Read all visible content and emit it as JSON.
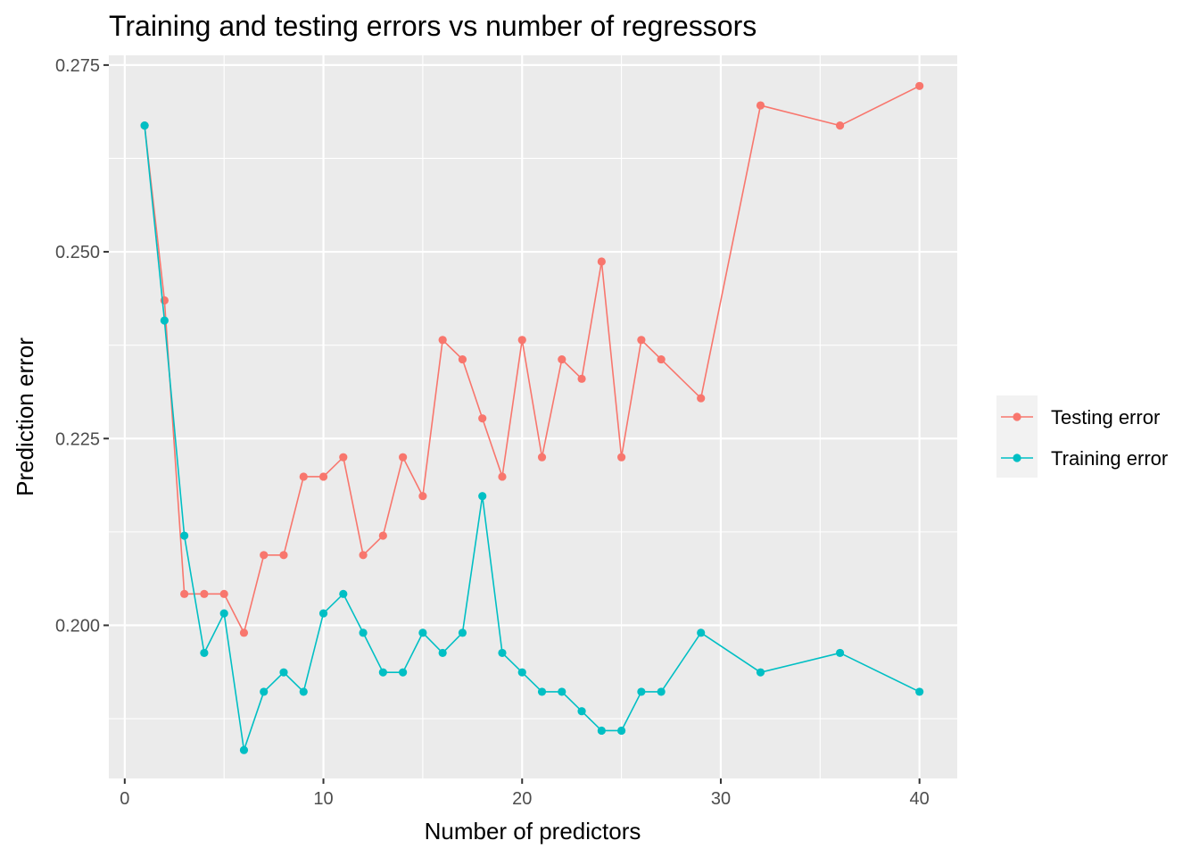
{
  "chart_data": {
    "type": "line",
    "title": "Training and testing errors vs number of regressors",
    "xlabel": "Number of predictors",
    "ylabel": "Prediction error",
    "xlim": [
      -0.8,
      41.9
    ],
    "ylim": [
      0.1795,
      0.2763
    ],
    "x_ticks": [
      0,
      10,
      20,
      30,
      40
    ],
    "x_tick_labels": [
      "0",
      "10",
      "20",
      "30",
      "40"
    ],
    "y_ticks": [
      0.2,
      0.225,
      0.25,
      0.275
    ],
    "y_tick_labels": [
      "0.200",
      "0.225",
      "0.250",
      "0.275"
    ],
    "grid": true,
    "panel_background": "#ebebeb",
    "legend_position": "right",
    "series": [
      {
        "name": "Testing error",
        "color": "#f8766d",
        "x": [
          1,
          2,
          3,
          4,
          5,
          6,
          7,
          8,
          9,
          10,
          11,
          12,
          13,
          14,
          15,
          16,
          17,
          18,
          19,
          20,
          21,
          22,
          23,
          24,
          25,
          26,
          27,
          29,
          32,
          36,
          40
        ],
        "y": [
          0.2669,
          0.2435,
          0.2042,
          0.2042,
          0.2042,
          0.199,
          0.2094,
          0.2094,
          0.2199,
          0.2199,
          0.2225,
          0.2094,
          0.212,
          0.2225,
          0.2173,
          0.2382,
          0.2356,
          0.2277,
          0.2199,
          0.2382,
          0.2225,
          0.2356,
          0.233,
          0.2487,
          0.2225,
          0.2382,
          0.2356,
          0.2304,
          0.2696,
          0.2669,
          0.2722
        ]
      },
      {
        "name": "Training error",
        "color": "#00bfc4",
        "x": [
          1,
          2,
          3,
          4,
          5,
          6,
          7,
          8,
          9,
          10,
          11,
          12,
          13,
          14,
          15,
          16,
          17,
          18,
          19,
          20,
          21,
          22,
          23,
          24,
          25,
          26,
          27,
          29,
          32,
          36,
          40
        ],
        "y": [
          0.2669,
          0.2408,
          0.212,
          0.1963,
          0.2016,
          0.1833,
          0.1911,
          0.1937,
          0.1911,
          0.2016,
          0.2042,
          0.199,
          0.1937,
          0.1937,
          0.199,
          0.1963,
          0.199,
          0.2173,
          0.1963,
          0.1937,
          0.1911,
          0.1911,
          0.1885,
          0.1859,
          0.1859,
          0.1911,
          0.1911,
          0.199,
          0.1937,
          0.1963,
          0.1911
        ]
      }
    ]
  }
}
